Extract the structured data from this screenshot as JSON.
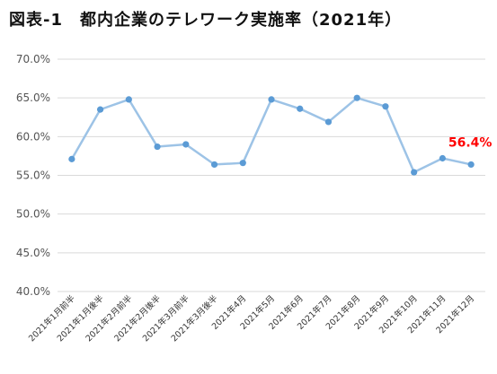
{
  "chart_data": {
    "type": "line",
    "title": "図表-1　都内企業のテレワーク実施率（2021年）",
    "xlabel": "",
    "ylabel": "",
    "ylim": [
      40,
      70
    ],
    "ytick_step": 5,
    "grid": true,
    "legend": "none",
    "categories": [
      "2021年1月前半",
      "2021年1月後半",
      "2021年2月前半",
      "2021年2月後半",
      "2021年3月前半",
      "2021年3月後半",
      "2021年4月",
      "2021年5月",
      "2021年6月",
      "2021年7月",
      "2021年8月",
      "2021年9月",
      "2021年10月",
      "2021年11月",
      "2021年12月"
    ],
    "series": [
      {
        "values": [
          57.1,
          63.5,
          64.8,
          58.7,
          59.0,
          56.4,
          56.6,
          64.8,
          63.6,
          61.9,
          65.0,
          63.9,
          55.4,
          57.2,
          56.4
        ],
        "color": "#9dc3e6",
        "marker_color": "#5b9bd5"
      }
    ],
    "annotations": [
      {
        "index": 14,
        "text": "56.4%",
        "color": "#ff0000"
      }
    ]
  }
}
